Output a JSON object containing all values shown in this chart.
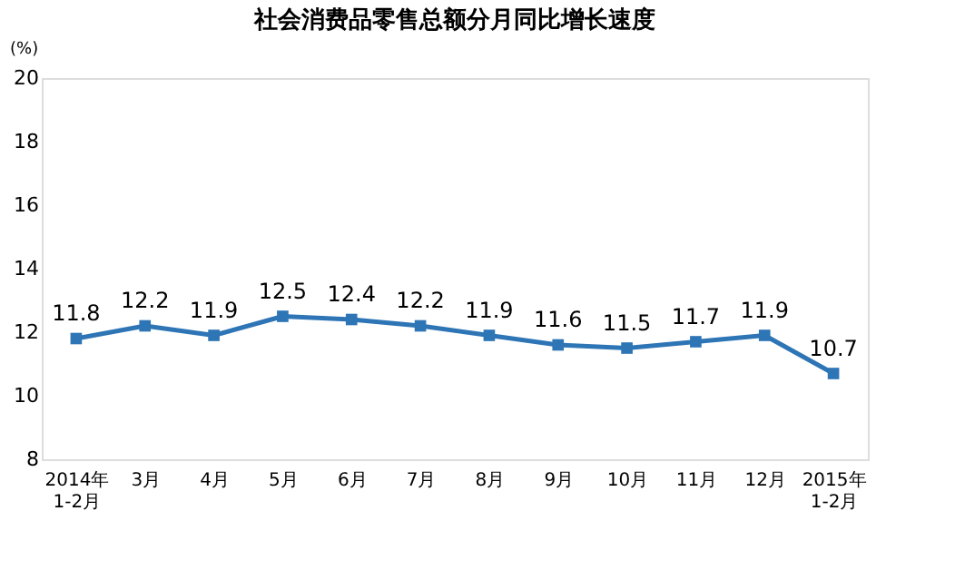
{
  "chart_data": {
    "type": "line",
    "title": "社会消费品零售总额分月同比增长速度",
    "ylabel": "(%)",
    "categories": [
      "2014年\n1-2月",
      "3月",
      "4月",
      "5月",
      "6月",
      "7月",
      "8月",
      "9月",
      "10月",
      "11月",
      "12月",
      "2015年\n1-2月"
    ],
    "series": [
      {
        "color": "#2e75b6",
        "values": [
          11.8,
          12.2,
          11.9,
          12.5,
          12.4,
          12.2,
          11.9,
          11.6,
          11.5,
          11.7,
          11.9,
          10.7
        ]
      }
    ],
    "ylim": [
      8,
      20
    ],
    "yticks": [
      8,
      10,
      12,
      14,
      16,
      18,
      20
    ],
    "grid": false,
    "marker": "square",
    "line_style": "solid",
    "data_labels": true
  }
}
